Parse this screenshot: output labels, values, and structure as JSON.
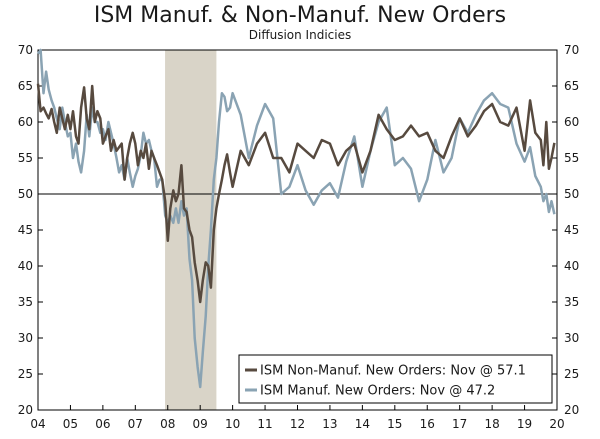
{
  "chart_data": {
    "type": "line",
    "title": "ISM Manuf. & Non-Manuf. New Orders",
    "subtitle": "Diffusion Indicies",
    "xlabel": "",
    "ylabel": "",
    "ylim": [
      20,
      70
    ],
    "yticks": [
      20,
      25,
      30,
      35,
      40,
      45,
      50,
      55,
      60,
      65,
      70
    ],
    "xlim": [
      2004.0,
      2020.0
    ],
    "xtick_labels": [
      "04",
      "05",
      "06",
      "07",
      "08",
      "09",
      "10",
      "11",
      "12",
      "13",
      "14",
      "15",
      "16",
      "17",
      "18",
      "19",
      "20"
    ],
    "reference_line": 50,
    "recession_shading": [
      2007.917,
      2009.5
    ],
    "legend_position": "bottom-right",
    "series": [
      {
        "name": "ISM Non-Manuf. New Orders: Nov @ 57.1",
        "color": "#574a3f",
        "x": [
          2004.0,
          2004.08,
          2004.17,
          2004.25,
          2004.33,
          2004.42,
          2004.5,
          2004.58,
          2004.67,
          2004.75,
          2004.83,
          2004.92,
          2005.0,
          2005.08,
          2005.17,
          2005.25,
          2005.33,
          2005.42,
          2005.5,
          2005.58,
          2005.67,
          2005.75,
          2005.83,
          2005.92,
          2006.0,
          2006.08,
          2006.17,
          2006.25,
          2006.33,
          2006.42,
          2006.5,
          2006.58,
          2006.67,
          2006.75,
          2006.83,
          2006.92,
          2007.0,
          2007.08,
          2007.17,
          2007.25,
          2007.33,
          2007.42,
          2007.5,
          2007.58,
          2007.67,
          2007.75,
          2007.83,
          2007.92,
          2008.0,
          2008.08,
          2008.17,
          2008.25,
          2008.33,
          2008.42,
          2008.5,
          2008.58,
          2008.67,
          2008.75,
          2008.83,
          2008.92,
          2009.0,
          2009.08,
          2009.17,
          2009.25,
          2009.33,
          2009.42,
          2009.5,
          2009.58,
          2009.67,
          2009.75,
          2009.83,
          2009.92,
          2010.0,
          2010.25,
          2010.5,
          2010.75,
          2011.0,
          2011.25,
          2011.5,
          2011.75,
          2012.0,
          2012.25,
          2012.5,
          2012.75,
          2013.0,
          2013.25,
          2013.5,
          2013.75,
          2014.0,
          2014.25,
          2014.5,
          2014.75,
          2015.0,
          2015.25,
          2015.5,
          2015.75,
          2016.0,
          2016.25,
          2016.5,
          2016.75,
          2017.0,
          2017.25,
          2017.5,
          2017.75,
          2018.0,
          2018.25,
          2018.5,
          2018.75,
          2019.0,
          2019.17,
          2019.33,
          2019.5,
          2019.58,
          2019.67,
          2019.75,
          2019.83,
          2019.92
        ],
        "values": [
          65.3,
          61.5,
          62.0,
          61.2,
          60.5,
          61.8,
          60.0,
          58.5,
          62.0,
          60.5,
          59.0,
          61.0,
          59.0,
          61.5,
          58.0,
          57.0,
          62.0,
          64.8,
          60.5,
          59.0,
          65.0,
          60.0,
          61.5,
          60.5,
          57.0,
          58.0,
          59.0,
          56.0,
          57.5,
          56.0,
          56.5,
          57.0,
          52.0,
          55.0,
          57.0,
          58.5,
          57.0,
          54.0,
          56.0,
          55.0,
          57.0,
          53.5,
          56.0,
          55.0,
          54.0,
          53.0,
          52.0,
          49.0,
          43.5,
          48.0,
          50.5,
          49.0,
          50.0,
          54.0,
          48.0,
          47.5,
          45.0,
          44.0,
          40.5,
          38.0,
          35.0,
          38.0,
          40.5,
          40.0,
          37.0,
          45.0,
          48.0,
          50.0,
          52.0,
          54.0,
          55.5,
          53.0,
          51.0,
          56.0,
          54.0,
          57.0,
          58.5,
          55.0,
          55.0,
          53.0,
          57.0,
          56.0,
          55.0,
          57.5,
          57.0,
          54.0,
          56.0,
          57.0,
          53.0,
          56.0,
          61.0,
          59.0,
          57.5,
          58.0,
          59.5,
          58.0,
          58.5,
          56.0,
          55.0,
          58.0,
          60.5,
          58.0,
          59.5,
          61.5,
          62.5,
          60.0,
          59.5,
          62.0,
          56.0,
          63.0,
          58.5,
          57.5,
          54.0,
          60.0,
          53.5,
          55.0,
          57.1
        ]
      },
      {
        "name": "ISM Manuf. New Orders: Nov @ 47.2",
        "color": "#8aa3b3",
        "x": [
          2004.0,
          2004.08,
          2004.17,
          2004.25,
          2004.33,
          2004.42,
          2004.5,
          2004.58,
          2004.67,
          2004.75,
          2004.83,
          2004.92,
          2005.0,
          2005.08,
          2005.17,
          2005.25,
          2005.33,
          2005.42,
          2005.5,
          2005.58,
          2005.67,
          2005.75,
          2005.83,
          2005.92,
          2006.0,
          2006.08,
          2006.17,
          2006.25,
          2006.33,
          2006.42,
          2006.5,
          2006.58,
          2006.67,
          2006.75,
          2006.83,
          2006.92,
          2007.0,
          2007.08,
          2007.17,
          2007.25,
          2007.33,
          2007.42,
          2007.5,
          2007.58,
          2007.67,
          2007.75,
          2007.83,
          2007.92,
          2008.0,
          2008.08,
          2008.17,
          2008.25,
          2008.33,
          2008.42,
          2008.5,
          2008.58,
          2008.67,
          2008.75,
          2008.83,
          2008.92,
          2009.0,
          2009.08,
          2009.17,
          2009.25,
          2009.33,
          2009.42,
          2009.5,
          2009.58,
          2009.67,
          2009.75,
          2009.83,
          2009.92,
          2010.0,
          2010.25,
          2010.5,
          2010.75,
          2011.0,
          2011.25,
          2011.5,
          2011.75,
          2012.0,
          2012.25,
          2012.5,
          2012.75,
          2013.0,
          2013.25,
          2013.5,
          2013.75,
          2014.0,
          2014.25,
          2014.5,
          2014.75,
          2015.0,
          2015.25,
          2015.5,
          2015.75,
          2016.0,
          2016.25,
          2016.5,
          2016.75,
          2017.0,
          2017.25,
          2017.5,
          2017.75,
          2018.0,
          2018.25,
          2018.5,
          2018.75,
          2019.0,
          2019.17,
          2019.33,
          2019.5,
          2019.58,
          2019.67,
          2019.75,
          2019.83,
          2019.92
        ],
        "values": [
          69.5,
          70.0,
          64.0,
          67.0,
          64.5,
          63.0,
          62.0,
          60.5,
          59.0,
          62.0,
          60.0,
          58.0,
          58.5,
          55.0,
          57.0,
          54.5,
          53.0,
          56.0,
          61.0,
          58.0,
          62.0,
          60.0,
          60.0,
          58.5,
          59.0,
          57.5,
          60.0,
          58.5,
          57.0,
          55.0,
          53.0,
          54.0,
          52.0,
          55.0,
          53.0,
          51.0,
          52.5,
          53.5,
          55.5,
          58.5,
          57.0,
          57.5,
          56.0,
          55.0,
          51.0,
          52.0,
          52.0,
          47.0,
          46.0,
          47.0,
          46.0,
          48.0,
          46.0,
          49.0,
          47.0,
          48.0,
          41.0,
          38.0,
          30.0,
          26.0,
          23.2,
          28.0,
          33.0,
          40.0,
          45.0,
          52.0,
          55.0,
          60.0,
          64.0,
          63.5,
          61.5,
          62.0,
          64.0,
          61.0,
          55.0,
          59.5,
          62.5,
          60.5,
          50.0,
          51.0,
          54.0,
          50.5,
          48.5,
          50.5,
          51.5,
          49.5,
          54.5,
          58.0,
          51.0,
          56.0,
          60.0,
          62.0,
          54.0,
          55.0,
          53.5,
          49.0,
          52.0,
          57.5,
          53.0,
          55.0,
          60.5,
          58.5,
          61.0,
          63.0,
          64.0,
          62.5,
          62.0,
          57.0,
          54.5,
          56.5,
          52.5,
          51.0,
          49.0,
          50.0,
          47.5,
          49.0,
          47.2
        ]
      }
    ]
  }
}
